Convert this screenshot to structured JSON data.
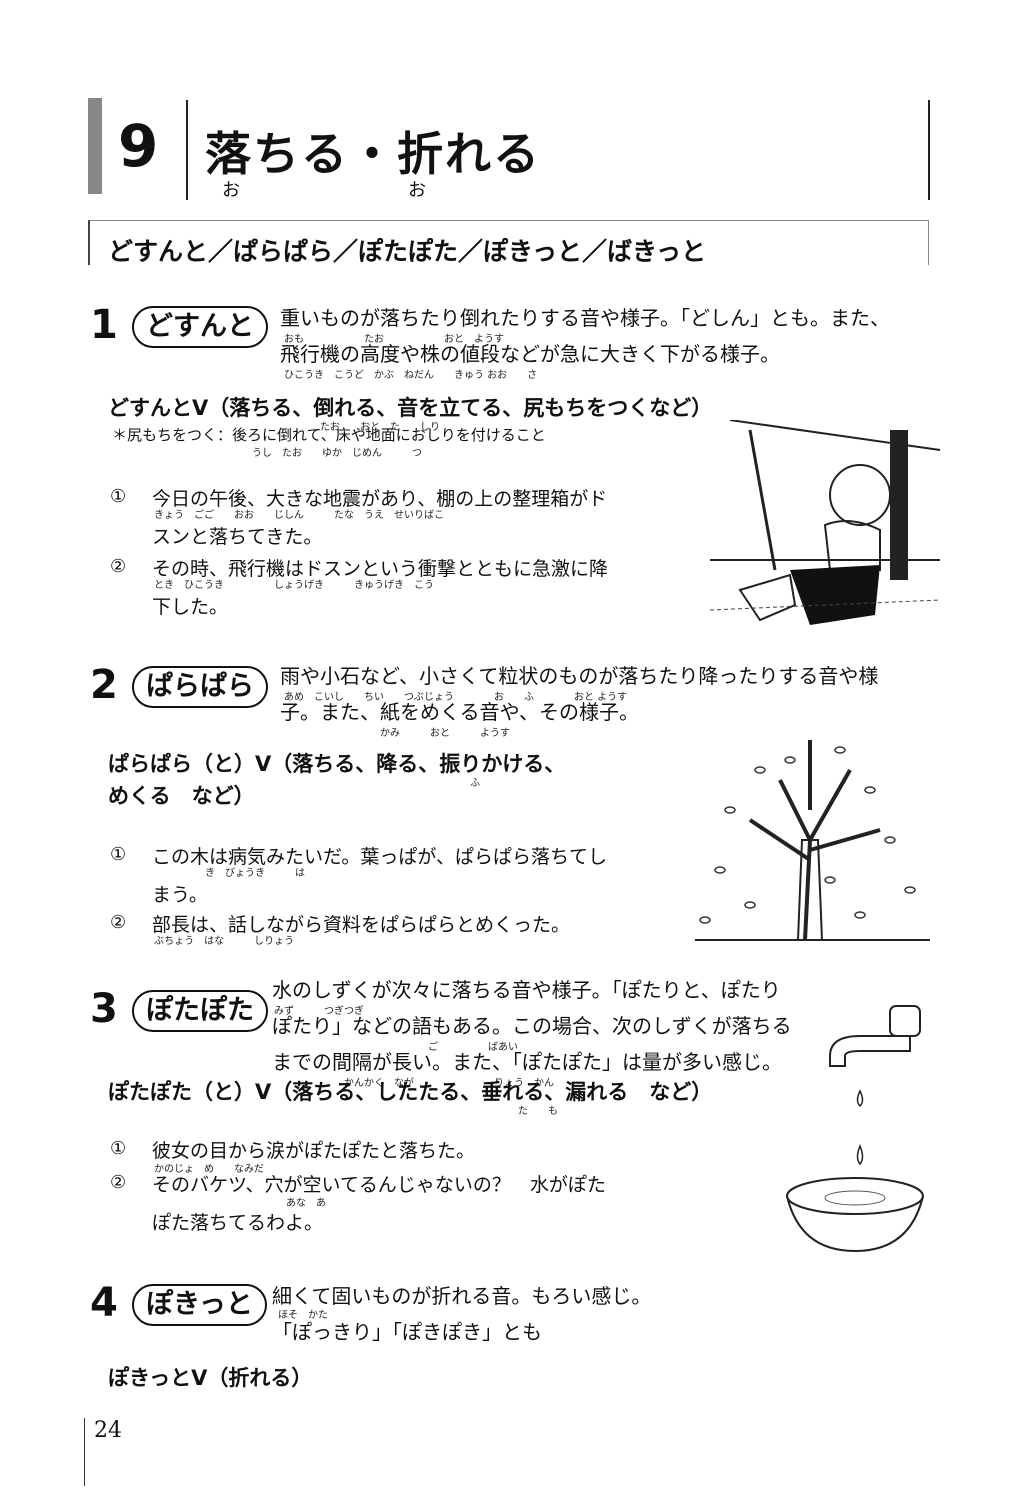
{
  "chapter": {
    "number": "9",
    "title": "落ちる・折れる",
    "ruby": [
      "お",
      "お"
    ]
  },
  "word_list": "どすんと／ぱらぱら／ぽたぽた／ぽきっと／ばきっと",
  "entries": [
    {
      "num": "1",
      "word": "どすんと",
      "desc": [
        "重いものが落ちたり倒れたりする音や様子。「どしん」とも。また、",
        "飛行機の高度や株の値段などが急に大きく下がる様子。"
      ],
      "desc_ruby": [
        "おも　　　　　　たお　　　　　　おと　ようす",
        "ひこうき　こうど　かぶ　ねだん　　きゅう おお　　さ"
      ],
      "pattern": "どすんとV（落ちる、倒れる、音を立てる、尻もちをつくなど）",
      "pattern_ruby": "たお　　おと　た　　しり",
      "note": "＊尻もちをつく：後ろに倒れて、床や地面におしりを付けること",
      "note_ruby": "うし　たお　　ゆか　じめん　　　つ",
      "examples": [
        {
          "n": "①",
          "lines": [
            "今日の午後、大きな地震があり、棚の上の整理箱がド",
            "スンと落ちてきた。"
          ],
          "ruby": "きょう　ごご　　おお　　じしん　　　たな　うえ　せいりばこ"
        },
        {
          "n": "②",
          "lines": [
            "その時、飛行機はドスンという衝撃とともに急激に降",
            "下した。"
          ],
          "ruby": "とき　ひこうき　　　　　しょうげき　　　きゅうげき　こう"
        }
      ]
    },
    {
      "num": "2",
      "word": "ぱらぱら",
      "desc": [
        "雨や小石など、小さくて粒状のものが落ちたり降ったりする音や様",
        "子。また、紙をめくる音や、その様子。"
      ],
      "desc_ruby": [
        "あめ　こいし　　ちい　　つぶじょう　　　　お　　ふ　　　　おと ようす",
        "かみ　　　おと　　　ようす"
      ],
      "pattern": "ぱらぱら（と）V（落ちる、降る、振りかける、",
      "pattern2": "めくる　など）",
      "pattern_ruby": "ふ",
      "examples": [
        {
          "n": "①",
          "lines": [
            "この木は病気みたいだ。葉っぱが、ぱらぱら落ちてし",
            "まう。"
          ],
          "ruby": "き　びょうき　　　は"
        },
        {
          "n": "②",
          "lines": [
            "部長は、話しながら資料をぱらぱらとめくった。"
          ],
          "ruby": "ぶちょう　はな　　　しりょう"
        }
      ]
    },
    {
      "num": "3",
      "word": "ぽたぽた",
      "desc": [
        "水のしずくが次々に落ちる音や様子。「ぽたりと、ぽたり",
        "ぽたり」などの語もある。この場合、次のしずくが落ちる",
        "までの間隔が長い。また、「ぽたぽた」は量が多い感じ。"
      ],
      "desc_ruby": [
        "みず　　　つぎつぎ",
        "ご　　　　　ばあい",
        "かんかく　なが　　　　　　　　りょう　かん"
      ],
      "pattern": "ぽたぽた（と）V（落ちる、したたる、垂れる、漏れる　など）",
      "pattern_ruby": "た　　も",
      "examples": [
        {
          "n": "①",
          "lines": [
            "彼女の目から涙がぽたぽたと落ちた。"
          ],
          "ruby": "かのじょ　め　　なみだ"
        },
        {
          "n": "②",
          "lines": [
            "そのバケツ、穴が空いてるんじゃないの？　水がぽた",
            "ぽた落ちてるわよ。"
          ],
          "ruby": "あな　あ"
        }
      ]
    },
    {
      "num": "4",
      "word": "ぽきっと",
      "desc": [
        "細くて固いものが折れる音。もろい感じ。",
        "「ぽっきり」「ぽきぽき」とも"
      ],
      "desc_ruby": [
        "ほそ　かた"
      ],
      "pattern": "ぽきっとV（折れる）"
    }
  ],
  "page_number": "24"
}
